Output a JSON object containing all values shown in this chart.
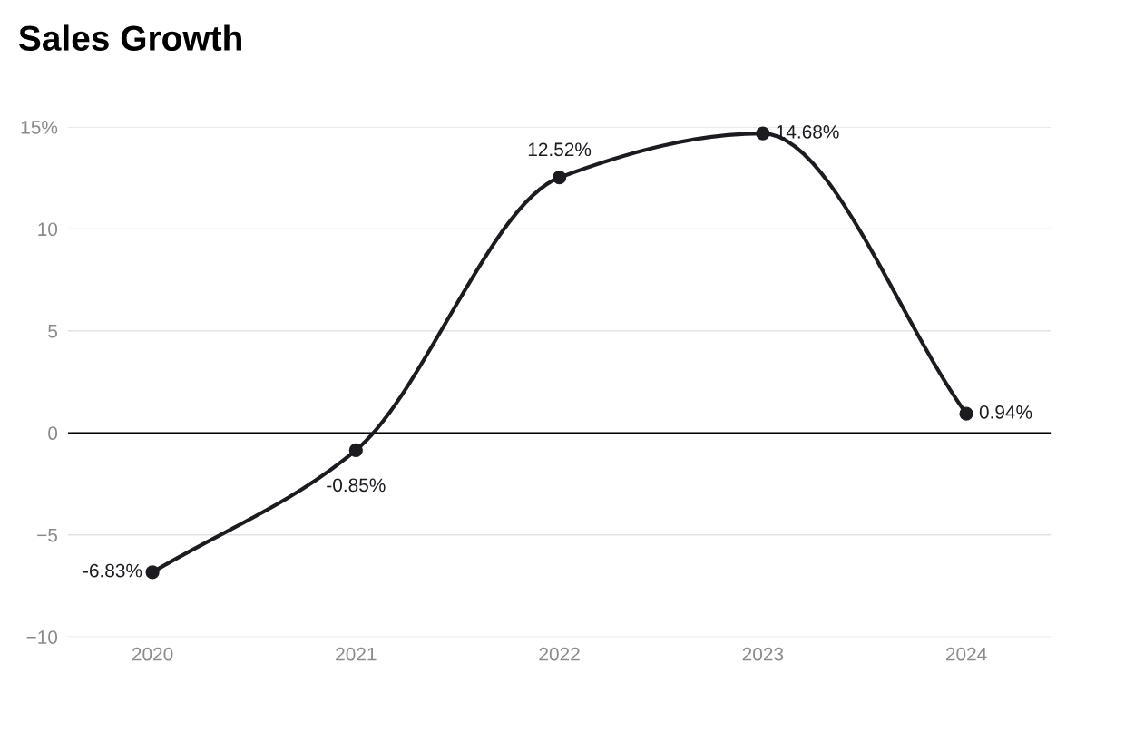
{
  "chart_data": {
    "type": "line",
    "title": "Sales Growth",
    "categories": [
      "2020",
      "2021",
      "2022",
      "2023",
      "2024"
    ],
    "series": [
      {
        "color": "#1c1b20",
        "values": [
          -6.83,
          -0.85,
          12.52,
          14.68,
          0.94
        ],
        "value_labels": [
          "-6.83%",
          "-0.85%",
          "12.52%",
          "14.68%",
          "0.94%"
        ]
      }
    ],
    "ylim": [
      -10,
      15
    ],
    "yticks": [
      {
        "value": 15,
        "label": "15%"
      },
      10,
      5,
      0,
      {
        "value": -5,
        "label": "−5"
      },
      {
        "value": -10,
        "label": "−10"
      }
    ],
    "ref_lines": [
      {
        "axis": "y",
        "value": 0,
        "color": "#000000"
      }
    ],
    "grid": "y",
    "marker": "circle",
    "line_style": "solid"
  }
}
